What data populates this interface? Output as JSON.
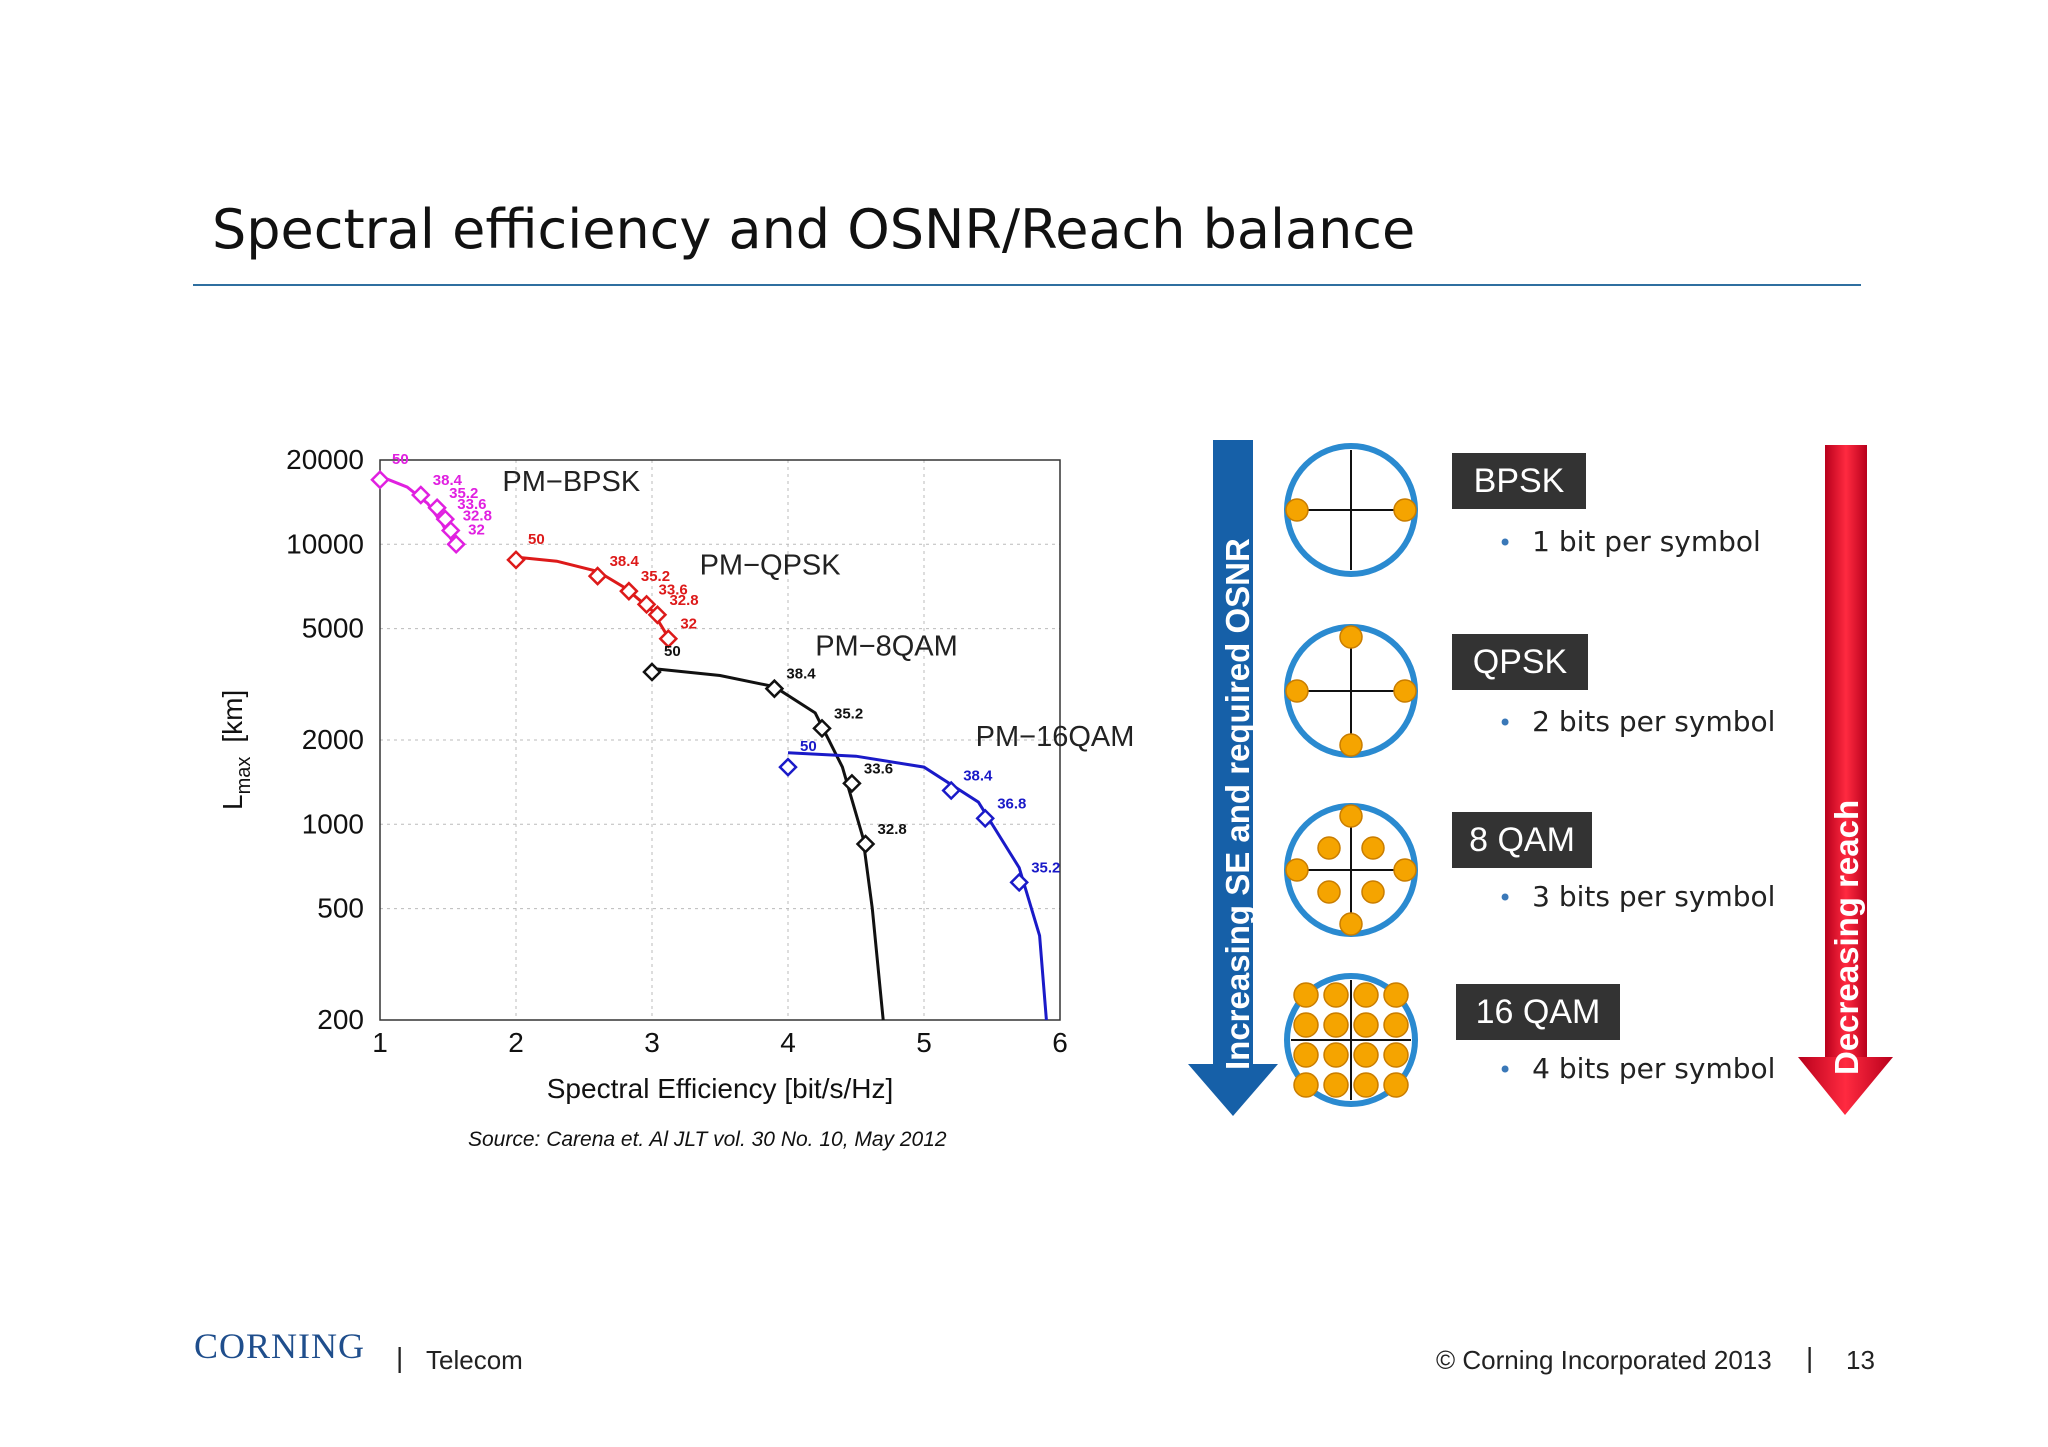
{
  "slide": {
    "title": "Spectral efficiency and OSNR/Reach balance",
    "source": "Source: Carena et. Al JLT vol. 30 No. 10, May  2012"
  },
  "chart_data": {
    "type": "line",
    "xlabel": "Spectral Efficiency  [bit/s/Hz]",
    "ylabel": "L",
    "ylabel_sub": "max",
    "ylabel_unit": "[km]",
    "x_scale": "linear",
    "y_scale": "log",
    "xlim": [
      1,
      6
    ],
    "ylim": [
      200,
      20000
    ],
    "xticks": [
      1,
      2,
      3,
      4,
      5,
      6
    ],
    "yticks": [
      200,
      500,
      1000,
      2000,
      5000,
      10000,
      20000
    ],
    "grid": true,
    "series": [
      {
        "name": "PM−BPSK",
        "color": "#e020e0",
        "curve": [
          [
            1,
            17500
          ],
          [
            1.2,
            16000
          ],
          [
            1.35,
            14000
          ],
          [
            1.45,
            12000
          ],
          [
            1.52,
            10500
          ],
          [
            1.58,
            9500
          ]
        ],
        "points": [
          {
            "x": 1.0,
            "y": 17000,
            "label": "50"
          },
          {
            "x": 1.3,
            "y": 15000,
            "label": "38.4"
          },
          {
            "x": 1.42,
            "y": 13500,
            "label": "35.2"
          },
          {
            "x": 1.48,
            "y": 12300,
            "label": "33.6"
          },
          {
            "x": 1.52,
            "y": 11200,
            "label": "32.8"
          },
          {
            "x": 1.56,
            "y": 10000,
            "label": "32"
          }
        ]
      },
      {
        "name": "PM−QPSK",
        "color": "#dd1a1a",
        "curve": [
          [
            2,
            9000
          ],
          [
            2.3,
            8700
          ],
          [
            2.6,
            8000
          ],
          [
            2.8,
            7000
          ],
          [
            3.0,
            5800
          ],
          [
            3.15,
            4400
          ]
        ],
        "points": [
          {
            "x": 2.0,
            "y": 8800,
            "label": "50"
          },
          {
            "x": 2.6,
            "y": 7700,
            "label": "38.4"
          },
          {
            "x": 2.83,
            "y": 6800,
            "label": "35.2"
          },
          {
            "x": 2.96,
            "y": 6100,
            "label": "33.6"
          },
          {
            "x": 3.04,
            "y": 5600,
            "label": "32.8"
          },
          {
            "x": 3.12,
            "y": 4600,
            "label": "32"
          }
        ]
      },
      {
        "name": "PM−8QAM",
        "color": "#111111",
        "curve": [
          [
            3,
            3600
          ],
          [
            3.5,
            3400
          ],
          [
            3.9,
            3100
          ],
          [
            4.2,
            2500
          ],
          [
            4.4,
            1600
          ],
          [
            4.55,
            900
          ],
          [
            4.62,
            500
          ],
          [
            4.7,
            200
          ]
        ],
        "points": [
          {
            "x": 3.0,
            "y": 3500,
            "label": "50"
          },
          {
            "x": 3.9,
            "y": 3050,
            "label": "38.4"
          },
          {
            "x": 4.25,
            "y": 2200,
            "label": "35.2"
          },
          {
            "x": 4.47,
            "y": 1400,
            "label": "33.6"
          },
          {
            "x": 4.57,
            "y": 850,
            "label": "32.8"
          }
        ]
      },
      {
        "name": "PM−16QAM",
        "color": "#1a1ac8",
        "curve": [
          [
            4,
            1800
          ],
          [
            4.5,
            1750
          ],
          [
            5.0,
            1600
          ],
          [
            5.4,
            1200
          ],
          [
            5.7,
            700
          ],
          [
            5.85,
            400
          ],
          [
            5.9,
            200
          ]
        ],
        "points": [
          {
            "x": 4.0,
            "y": 1600,
            "label": "50"
          },
          {
            "x": 5.2,
            "y": 1320,
            "label": "38.4"
          },
          {
            "x": 5.45,
            "y": 1050,
            "label": "36.8"
          },
          {
            "x": 5.7,
            "y": 620,
            "label": "35.2"
          }
        ]
      }
    ]
  },
  "modulations": {
    "left_arrow_label": "Increasing SE and required OSNR",
    "right_arrow_label": "Decreasing reach",
    "items": [
      {
        "name": "BPSK",
        "bits": "1 bit per symbol"
      },
      {
        "name": "QPSK",
        "bits": "2 bits per symbol"
      },
      {
        "name": "8 QAM",
        "bits": "3 bits per symbol"
      },
      {
        "name": "16 QAM",
        "bits": "4 bits per symbol"
      }
    ],
    "arrow_colors": {
      "left": "#1660a8",
      "right": "#e0102a"
    },
    "dot_color": "#f5a400",
    "ring_color": "#2a8ad0"
  },
  "footer": {
    "logo": "CORNING",
    "division": "Telecom",
    "copyright": "© Corning Incorporated 2013",
    "page": "13"
  }
}
